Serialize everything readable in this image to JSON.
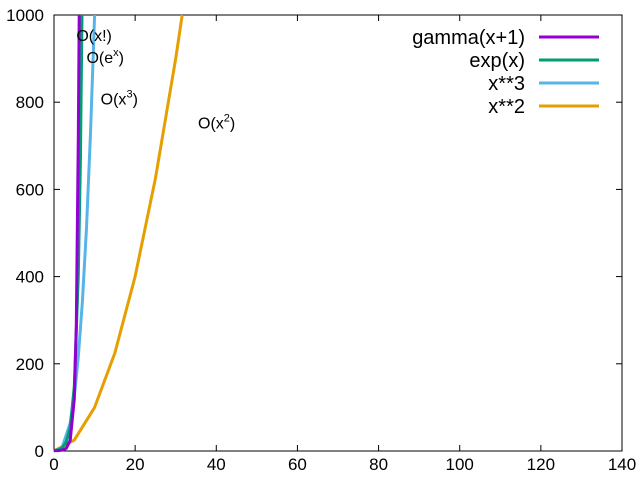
{
  "chart_data": {
    "type": "line",
    "title": "",
    "xlabel": "",
    "ylabel": "",
    "xlim": [
      0,
      140
    ],
    "ylim": [
      0,
      1000
    ],
    "x_ticks": [
      "0",
      "20",
      "40",
      "60",
      "80",
      "100",
      "120",
      "140"
    ],
    "y_ticks": [
      "0",
      "200",
      "400",
      "600",
      "800",
      "1000"
    ],
    "grid": false,
    "legend_position": "top-right",
    "series": [
      {
        "name": "gamma(x+1)",
        "color": "#9400d3",
        "x": [
          0,
          1,
          2,
          3,
          4,
          5,
          5.5,
          6,
          6.2
        ],
        "y": [
          1,
          1,
          2,
          6,
          24,
          120,
          287.9,
          720,
          1000
        ]
      },
      {
        "name": "exp(x)",
        "color": "#009e73",
        "x": [
          0,
          1,
          2,
          3,
          4,
          5,
          6,
          6.5,
          6.9
        ],
        "y": [
          1,
          2.7,
          7.4,
          20.1,
          54.6,
          148.4,
          403.4,
          665.1,
          1000
        ]
      },
      {
        "name": "x**3",
        "color": "#56b4e9",
        "x": [
          0,
          2,
          4,
          5,
          6,
          7,
          8,
          9,
          10
        ],
        "y": [
          0,
          8,
          64,
          125,
          216,
          343,
          512,
          729,
          1000
        ]
      },
      {
        "name": "x**2",
        "color": "#e69f00",
        "x": [
          0,
          5,
          10,
          15,
          20,
          25,
          30,
          31.6
        ],
        "y": [
          0,
          25,
          100,
          225,
          400,
          625,
          900,
          1000
        ]
      }
    ],
    "annotations": [
      {
        "base": "O(x!)",
        "sup": "",
        "tail": "",
        "x": 5.5,
        "y": 940
      },
      {
        "base": "O(e",
        "sup": "x",
        "tail": ")",
        "x": 8,
        "y": 890
      },
      {
        "base": "O(x",
        "sup": "3",
        "tail": ")",
        "x": 11.5,
        "y": 795
      },
      {
        "base": "O(x",
        "sup": "2",
        "tail": ")",
        "x": 35.5,
        "y": 740
      }
    ]
  }
}
